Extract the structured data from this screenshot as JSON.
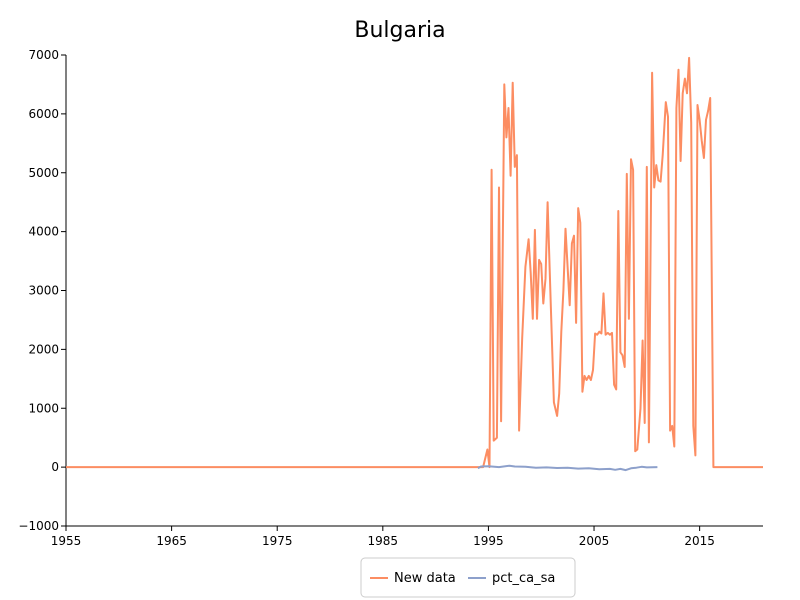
{
  "chart_data": {
    "type": "line",
    "title": "Bulgaria",
    "xlabel": "",
    "ylabel": "",
    "xlim": [
      1955,
      2021
    ],
    "ylim": [
      -1000,
      7000
    ],
    "x_ticks": [
      1955,
      1965,
      1975,
      1985,
      1995,
      2005,
      2015
    ],
    "y_ticks": [
      -1000,
      0,
      1000,
      2000,
      3000,
      4000,
      5000,
      6000,
      7000
    ],
    "x_tick_labels": [
      "1955",
      "1965",
      "1975",
      "1985",
      "1995",
      "2005",
      "2015"
    ],
    "y_tick_labels": [
      "−1000",
      "0",
      "1000",
      "2000",
      "3000",
      "4000",
      "5000",
      "6000",
      "7000"
    ],
    "grid": false,
    "legend_position": "bottom-center",
    "series": [
      {
        "name": "New data",
        "color": "#fc8d62",
        "points": [
          [
            1955.0,
            0
          ],
          [
            1994.5,
            0
          ],
          [
            1994.9,
            300
          ],
          [
            1995.1,
            0
          ],
          [
            1995.3,
            5050
          ],
          [
            1995.5,
            450
          ],
          [
            1995.8,
            500
          ],
          [
            1996.0,
            4750
          ],
          [
            1996.2,
            780
          ],
          [
            1996.5,
            6500
          ],
          [
            1996.7,
            5600
          ],
          [
            1996.9,
            6100
          ],
          [
            1997.1,
            4950
          ],
          [
            1997.3,
            6530
          ],
          [
            1997.5,
            5100
          ],
          [
            1997.7,
            5300
          ],
          [
            1997.9,
            620
          ],
          [
            1998.2,
            2200
          ],
          [
            1998.5,
            3400
          ],
          [
            1998.8,
            3870
          ],
          [
            1999.0,
            3300
          ],
          [
            1999.2,
            2520
          ],
          [
            1999.4,
            4030
          ],
          [
            1999.6,
            2520
          ],
          [
            1999.8,
            3520
          ],
          [
            2000.0,
            3450
          ],
          [
            2000.2,
            2780
          ],
          [
            2000.4,
            3200
          ],
          [
            2000.6,
            4500
          ],
          [
            2000.9,
            2800
          ],
          [
            2001.2,
            1100
          ],
          [
            2001.5,
            870
          ],
          [
            2001.7,
            1250
          ],
          [
            2001.9,
            2300
          ],
          [
            2002.1,
            3000
          ],
          [
            2002.3,
            4050
          ],
          [
            2002.5,
            3400
          ],
          [
            2002.7,
            2750
          ],
          [
            2002.9,
            3800
          ],
          [
            2003.1,
            3930
          ],
          [
            2003.3,
            2450
          ],
          [
            2003.5,
            4400
          ],
          [
            2003.7,
            4150
          ],
          [
            2003.9,
            1280
          ],
          [
            2004.1,
            1550
          ],
          [
            2004.3,
            1480
          ],
          [
            2004.5,
            1550
          ],
          [
            2004.7,
            1480
          ],
          [
            2004.9,
            1650
          ],
          [
            2005.1,
            2270
          ],
          [
            2005.3,
            2250
          ],
          [
            2005.5,
            2300
          ],
          [
            2005.7,
            2270
          ],
          [
            2005.9,
            2950
          ],
          [
            2006.1,
            2250
          ],
          [
            2006.3,
            2280
          ],
          [
            2006.5,
            2250
          ],
          [
            2006.7,
            2280
          ],
          [
            2006.9,
            1400
          ],
          [
            2007.1,
            1320
          ],
          [
            2007.3,
            4350
          ],
          [
            2007.5,
            1950
          ],
          [
            2007.7,
            1900
          ],
          [
            2007.9,
            1700
          ],
          [
            2008.1,
            4980
          ],
          [
            2008.3,
            2520
          ],
          [
            2008.5,
            5230
          ],
          [
            2008.7,
            5050
          ],
          [
            2008.9,
            270
          ],
          [
            2009.1,
            300
          ],
          [
            2009.4,
            1000
          ],
          [
            2009.6,
            2150
          ],
          [
            2009.8,
            750
          ],
          [
            2010.0,
            5100
          ],
          [
            2010.2,
            420
          ],
          [
            2010.5,
            6700
          ],
          [
            2010.7,
            4750
          ],
          [
            2010.9,
            5130
          ],
          [
            2011.1,
            4870
          ],
          [
            2011.3,
            4850
          ],
          [
            2011.5,
            5300
          ],
          [
            2011.8,
            6200
          ],
          [
            2012.0,
            5950
          ],
          [
            2012.2,
            620
          ],
          [
            2012.4,
            700
          ],
          [
            2012.6,
            350
          ],
          [
            2012.8,
            6100
          ],
          [
            2013.0,
            6750
          ],
          [
            2013.2,
            5200
          ],
          [
            2013.4,
            6350
          ],
          [
            2013.6,
            6600
          ],
          [
            2013.8,
            6350
          ],
          [
            2014.0,
            6950
          ],
          [
            2014.2,
            5850
          ],
          [
            2014.4,
            700
          ],
          [
            2014.6,
            200
          ],
          [
            2014.8,
            6150
          ],
          [
            2015.0,
            5900
          ],
          [
            2015.2,
            5550
          ],
          [
            2015.4,
            5250
          ],
          [
            2015.6,
            5900
          ],
          [
            2015.8,
            6050
          ],
          [
            2016.0,
            6270
          ],
          [
            2016.3,
            0
          ],
          [
            2021.0,
            0
          ]
        ]
      },
      {
        "name": "pct_ca_sa",
        "color": "#8da0cb",
        "points": [
          [
            1994.0,
            -20
          ],
          [
            1994.3,
            10
          ],
          [
            1995.0,
            15
          ],
          [
            1996.0,
            0
          ],
          [
            1997.0,
            25
          ],
          [
            1997.5,
            10
          ],
          [
            1998.5,
            5
          ],
          [
            1999.5,
            -10
          ],
          [
            2000.5,
            -5
          ],
          [
            2001.5,
            -15
          ],
          [
            2002.5,
            -10
          ],
          [
            2003.5,
            -25
          ],
          [
            2004.5,
            -20
          ],
          [
            2005.5,
            -35
          ],
          [
            2006.5,
            -30
          ],
          [
            2007.0,
            -45
          ],
          [
            2007.5,
            -30
          ],
          [
            2008.0,
            -50
          ],
          [
            2008.5,
            -20
          ],
          [
            2009.0,
            -10
          ],
          [
            2009.5,
            5
          ],
          [
            2010.0,
            -5
          ],
          [
            2011.0,
            0
          ]
        ]
      }
    ]
  }
}
